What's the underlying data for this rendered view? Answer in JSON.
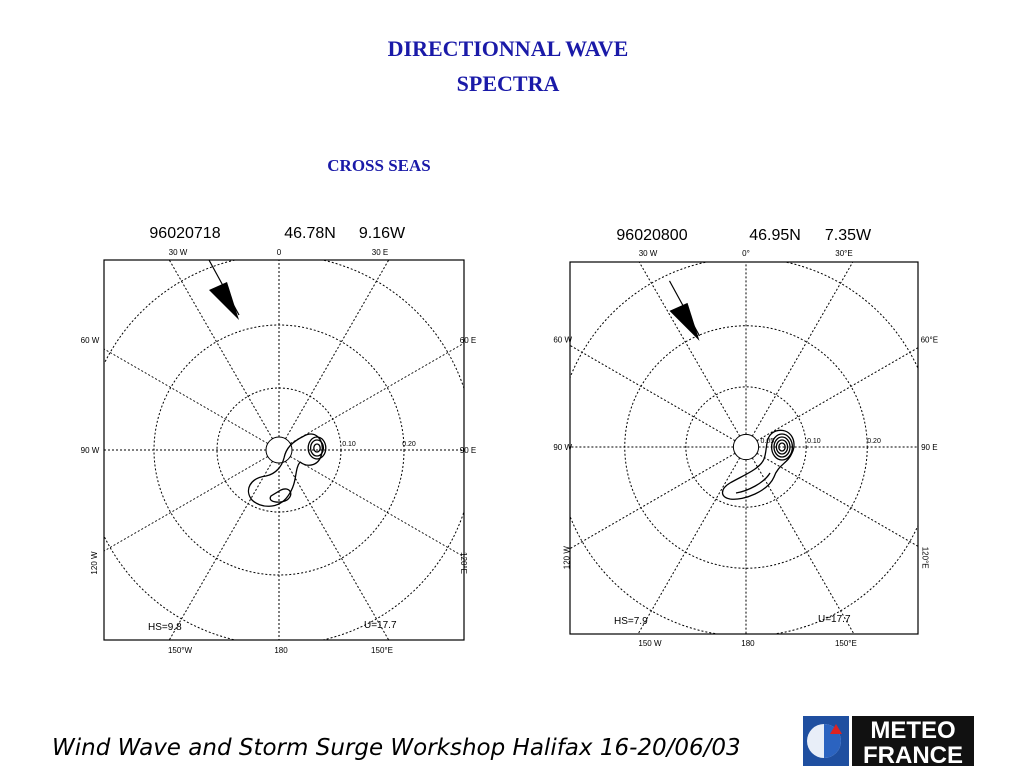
{
  "title_lines": [
    "DIRECTIONNAL WAVE",
    "SPECTRA"
  ],
  "subtitle": "CROSS SEAS",
  "panels": [
    {
      "date": "96020718",
      "lat": "46.78N",
      "lon": "9.16W",
      "directions": [
        "30 W",
        "0",
        "30 E",
        "60 W",
        "60 E",
        "90 W",
        "90 E",
        "120 W",
        "120°E",
        "150°W",
        "180",
        "150°E"
      ],
      "rings": [
        "0.10",
        "0.20"
      ],
      "hs": "HS=9.8",
      "u": "U=17.7"
    },
    {
      "date": "96020800",
      "lat": "46.95N",
      "lon": "7.35W",
      "directions": [
        "30 W",
        "0°",
        "30°E",
        "60 W",
        "60°E",
        "90 W",
        "90 E",
        "120 W",
        "120°E",
        "150 W",
        "180",
        "150°E"
      ],
      "rings": [
        "0.05",
        "0.10",
        "0.20"
      ],
      "hs": "HS=7.9",
      "u": "U=17.7"
    }
  ],
  "footer": "Wind Wave and Storm Surge Workshop Halifax 16-20/06/03",
  "logo": [
    "METEO",
    "FRANCE"
  ]
}
